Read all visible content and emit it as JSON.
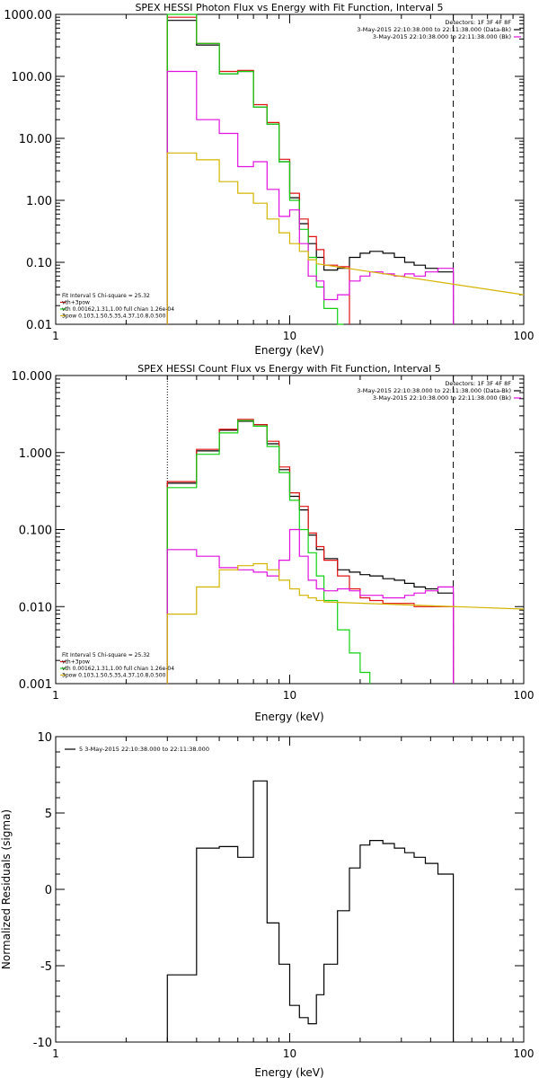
{
  "colors": {
    "black": "#000000",
    "red": "#e01010",
    "green": "#10d010",
    "magenta": "#e010e0",
    "gold": "#d4b400"
  },
  "chart_data": [
    {
      "type": "line",
      "title": "SPEX HESSI Photon Flux vs Energy with Fit Function, Interval 5",
      "xlabel": "Energy (keV)",
      "ylabel": "",
      "xscale": "log",
      "yscale": "log",
      "xlim": [
        1,
        100
      ],
      "ylim": [
        0.01,
        1000
      ],
      "xticks": [
        1,
        10,
        100
      ],
      "xtick_labels": [
        "1",
        "10",
        "100"
      ],
      "yticks": [
        0.01,
        0.1,
        1,
        10,
        100,
        1000
      ],
      "ytick_labels": [
        "0.01",
        "0.10",
        "1.00",
        "10.00",
        "100.00",
        "1000.00"
      ],
      "vlines": [
        {
          "x": 3.0,
          "style": "dotted",
          "color": "#d4b400"
        },
        {
          "x": 50.0,
          "style": "dashed",
          "color": "#000000"
        }
      ],
      "legend_top_right": [
        {
          "text": "Detectors: 1F 3F 4F 8F",
          "color": "#000000"
        },
        {
          "text": "3-May-2015 22:10:38.000 to 22:11:38.000 (Data-Bk)",
          "color": "#000000"
        },
        {
          "text": "3-May-2015 22:10:38.000 to 22:11:38.000 (Bk)",
          "color": "#e010e0"
        }
      ],
      "legend_bottom_left": [
        {
          "text": "Fit Interval 5   Chi-square = 25.32",
          "color": "#000000"
        },
        {
          "text": "vth+3pow",
          "color": "#e01010"
        },
        {
          "text": "vth 0.00162,1.31,1.00  full chian 1.26e-04",
          "color": "#10d010"
        },
        {
          "text": "3pow 0.103,1.50,5.35,4.37,10.8,0.500",
          "color": "#d4b400"
        }
      ],
      "series": [
        {
          "color": "#000000",
          "edges": [
            3.0,
            4.0,
            5.0,
            6.0,
            7.0,
            8.0,
            9.0,
            10.0,
            11.0,
            12.0,
            13.0,
            14.0,
            16.0,
            18.0,
            20.0,
            22.0,
            25.0,
            28.0,
            31.0,
            34.0,
            38.0,
            43.0,
            50.0
          ],
          "values": [
            800,
            320,
            110,
            120,
            32,
            17,
            4.2,
            1.1,
            0.42,
            0.2,
            0.12,
            0.075,
            0.08,
            0.12,
            0.14,
            0.15,
            0.14,
            0.12,
            0.1,
            0.09,
            0.08,
            0.07
          ]
        },
        {
          "color": "#e01010",
          "edges": [
            3.0,
            4.0,
            5.0,
            6.0,
            7.0,
            8.0,
            9.0,
            10.0,
            11.0,
            12.0,
            13.0,
            14.0,
            16.0,
            18.0
          ],
          "values": [
            900,
            340,
            120,
            125,
            35,
            18,
            4.6,
            1.3,
            0.5,
            0.26,
            0.16,
            0.09,
            0.085
          ]
        },
        {
          "color": "#10d010",
          "edges": [
            3.0,
            4.0,
            5.0,
            6.0,
            7.0,
            8.0,
            9.0,
            10.0,
            11.0,
            12.0,
            13.0,
            14.0,
            16.0,
            17.0
          ],
          "values": [
            1000,
            340,
            110,
            120,
            32,
            17,
            4.2,
            1.0,
            0.34,
            0.12,
            0.04,
            0.018,
            0.01
          ]
        },
        {
          "color": "#e010e0",
          "edges": [
            3.0,
            4.0,
            5.0,
            6.0,
            7.0,
            8.0,
            9.0,
            10.0,
            11.0,
            12.0,
            13.0,
            14.0,
            16.0,
            18.0,
            20.0,
            22.0,
            25.0,
            28.0,
            31.0,
            34.0,
            38.0,
            43.0,
            50.0
          ],
          "values": [
            120,
            20,
            12,
            3.5,
            4.2,
            1.5,
            0.55,
            0.7,
            0.2,
            0.06,
            0.05,
            0.025,
            0.03,
            0.05,
            0.06,
            0.07,
            0.065,
            0.06,
            0.065,
            0.06,
            0.07,
            0.08
          ]
        },
        {
          "color": "#d4b400",
          "edges": [
            3.0,
            4.0,
            5.0,
            6.0,
            7.0,
            8.0,
            9.0,
            10.0,
            11.0,
            12.0,
            13.0
          ],
          "values": [
            5.8,
            4.5,
            2.0,
            1.3,
            0.9,
            0.5,
            0.3,
            0.2,
            0.15,
            0.11
          ],
          "tail": [
            [
              13.0,
              0.095
            ],
            [
              100,
              0.03
            ]
          ]
        }
      ]
    },
    {
      "type": "line",
      "title": "SPEX HESSI Count Flux vs Energy with Fit Function, Interval 5",
      "xlabel": "Energy (keV)",
      "ylabel": "",
      "xscale": "log",
      "yscale": "log",
      "xlim": [
        1,
        100
      ],
      "ylim": [
        0.001,
        10
      ],
      "xticks": [
        1,
        10,
        100
      ],
      "xtick_labels": [
        "1",
        "10",
        "100"
      ],
      "yticks": [
        0.001,
        0.01,
        0.1,
        1,
        10
      ],
      "ytick_labels": [
        "0.001",
        "0.010",
        "0.100",
        "1.000",
        "10.000"
      ],
      "vlines": [
        {
          "x": 3.0,
          "style": "dotted",
          "color": "#000000"
        },
        {
          "x": 50.0,
          "style": "dashed",
          "color": "#000000"
        }
      ],
      "legend_top_right": [
        {
          "text": "Detectors: 1F 3F 4F 8F",
          "color": "#000000"
        },
        {
          "text": "3-May-2015 22:10:38.000 to 22:11:38.000 (Data-Bk)",
          "color": "#000000"
        },
        {
          "text": "3-May-2015 22:10:38.000 to 22:11:38.000 (Bk)",
          "color": "#e010e0"
        }
      ],
      "legend_bottom_left": [
        {
          "text": "Fit Interval 5   Chi-square = 25.32",
          "color": "#000000"
        },
        {
          "text": "vth+3pow",
          "color": "#e01010"
        },
        {
          "text": "vth 0.00162,1.31,1.00  full chian 1.26e-04",
          "color": "#10d010"
        },
        {
          "text": "3pow 0.103,1.50,5.35,4.37,10.8,0.500",
          "color": "#d4b400"
        }
      ],
      "series": [
        {
          "color": "#000000",
          "edges": [
            3.0,
            4.0,
            5.0,
            6.0,
            7.0,
            8.0,
            9.0,
            10.0,
            11.0,
            12.0,
            13.0,
            14.0,
            16.0,
            18.0,
            20.0,
            22.0,
            25.0,
            28.0,
            31.0,
            34.0,
            38.0,
            43.0,
            50.0
          ],
          "values": [
            0.4,
            1.05,
            1.95,
            2.55,
            2.3,
            1.3,
            0.6,
            0.27,
            0.18,
            0.085,
            0.055,
            0.042,
            0.03,
            0.028,
            0.026,
            0.025,
            0.023,
            0.022,
            0.02,
            0.018,
            0.017,
            0.015
          ]
        },
        {
          "color": "#e01010",
          "edges": [
            3.0,
            4.0,
            5.0,
            6.0,
            7.0,
            8.0,
            9.0,
            10.0,
            11.0,
            12.0,
            13.0,
            14.0,
            16.0,
            18.0,
            20.0,
            22.0,
            25.0,
            28.0,
            31.0,
            34.0,
            38.0,
            43.0,
            50.0
          ],
          "values": [
            0.42,
            1.1,
            2.0,
            2.7,
            2.3,
            1.4,
            0.65,
            0.3,
            0.2,
            0.09,
            0.06,
            0.04,
            0.025,
            0.017,
            0.013,
            0.012,
            0.011,
            0.011,
            0.011,
            0.01,
            0.01,
            0.01
          ]
        },
        {
          "color": "#10d010",
          "edges": [
            3.0,
            4.0,
            5.0,
            6.0,
            7.0,
            8.0,
            9.0,
            10.0,
            11.0,
            12.0,
            13.0,
            14.0,
            16.0,
            18.0,
            20.0,
            22.0
          ],
          "values": [
            0.35,
            0.95,
            1.8,
            2.6,
            2.2,
            1.2,
            0.55,
            0.24,
            0.1,
            0.05,
            0.025,
            0.012,
            0.005,
            0.0025,
            0.0014
          ]
        },
        {
          "color": "#e010e0",
          "edges": [
            3.0,
            4.0,
            5.0,
            6.0,
            7.0,
            8.0,
            9.0,
            10.0,
            11.0,
            12.0,
            13.0,
            14.0,
            16.0,
            18.0,
            20.0,
            22.0,
            25.0,
            28.0,
            31.0,
            34.0,
            38.0,
            43.0,
            50.0
          ],
          "values": [
            0.055,
            0.045,
            0.032,
            0.03,
            0.028,
            0.025,
            0.04,
            0.1,
            0.045,
            0.022,
            0.017,
            0.016,
            0.017,
            0.016,
            0.014,
            0.014,
            0.013,
            0.013,
            0.014,
            0.015,
            0.016,
            0.018
          ]
        },
        {
          "color": "#d4b400",
          "edges": [
            3.0,
            4.0,
            5.0,
            6.0,
            7.0,
            8.0,
            9.0,
            10.0,
            11.0,
            12.0,
            13.0,
            14.0
          ],
          "values": [
            0.008,
            0.018,
            0.03,
            0.034,
            0.036,
            0.03,
            0.022,
            0.017,
            0.014,
            0.013,
            0.012
          ],
          "tail": [
            [
              14.0,
              0.0115
            ],
            [
              100,
              0.0093
            ]
          ]
        }
      ]
    },
    {
      "type": "line",
      "title": "",
      "xlabel": "Energy (keV)",
      "ylabel": "Normalized Residuals (sigma)",
      "xscale": "log",
      "yscale": "linear",
      "xlim": [
        1,
        100
      ],
      "ylim": [
        -10,
        10
      ],
      "xticks": [
        1,
        10,
        100
      ],
      "xtick_labels": [
        "1",
        "10",
        "100"
      ],
      "yticks": [
        -10,
        -5,
        0,
        5,
        10
      ],
      "ytick_labels": [
        "-10",
        "-5",
        "0",
        "5",
        "10"
      ],
      "legend_top_left": [
        {
          "text": "5  3-May-2015 22:10:38.000 to 22:11:38.000",
          "color": "#000000"
        }
      ],
      "series": [
        {
          "color": "#000000",
          "edges": [
            3.0,
            4.0,
            5.0,
            6.0,
            7.0,
            8.0,
            9.0,
            10.0,
            11.0,
            12.0,
            13.0,
            14.0,
            16.0,
            18.0,
            20.0,
            22.0,
            25.0,
            28.0,
            31.0,
            34.0,
            38.0,
            43.0,
            50.0
          ],
          "values": [
            -5.6,
            2.7,
            2.8,
            2.1,
            7.1,
            -2.2,
            -4.9,
            -7.6,
            -8.4,
            -8.8,
            -6.9,
            -4.9,
            -1.4,
            1.4,
            2.9,
            3.2,
            3.0,
            2.7,
            2.4,
            2.1,
            1.7,
            1.0
          ]
        }
      ]
    }
  ]
}
